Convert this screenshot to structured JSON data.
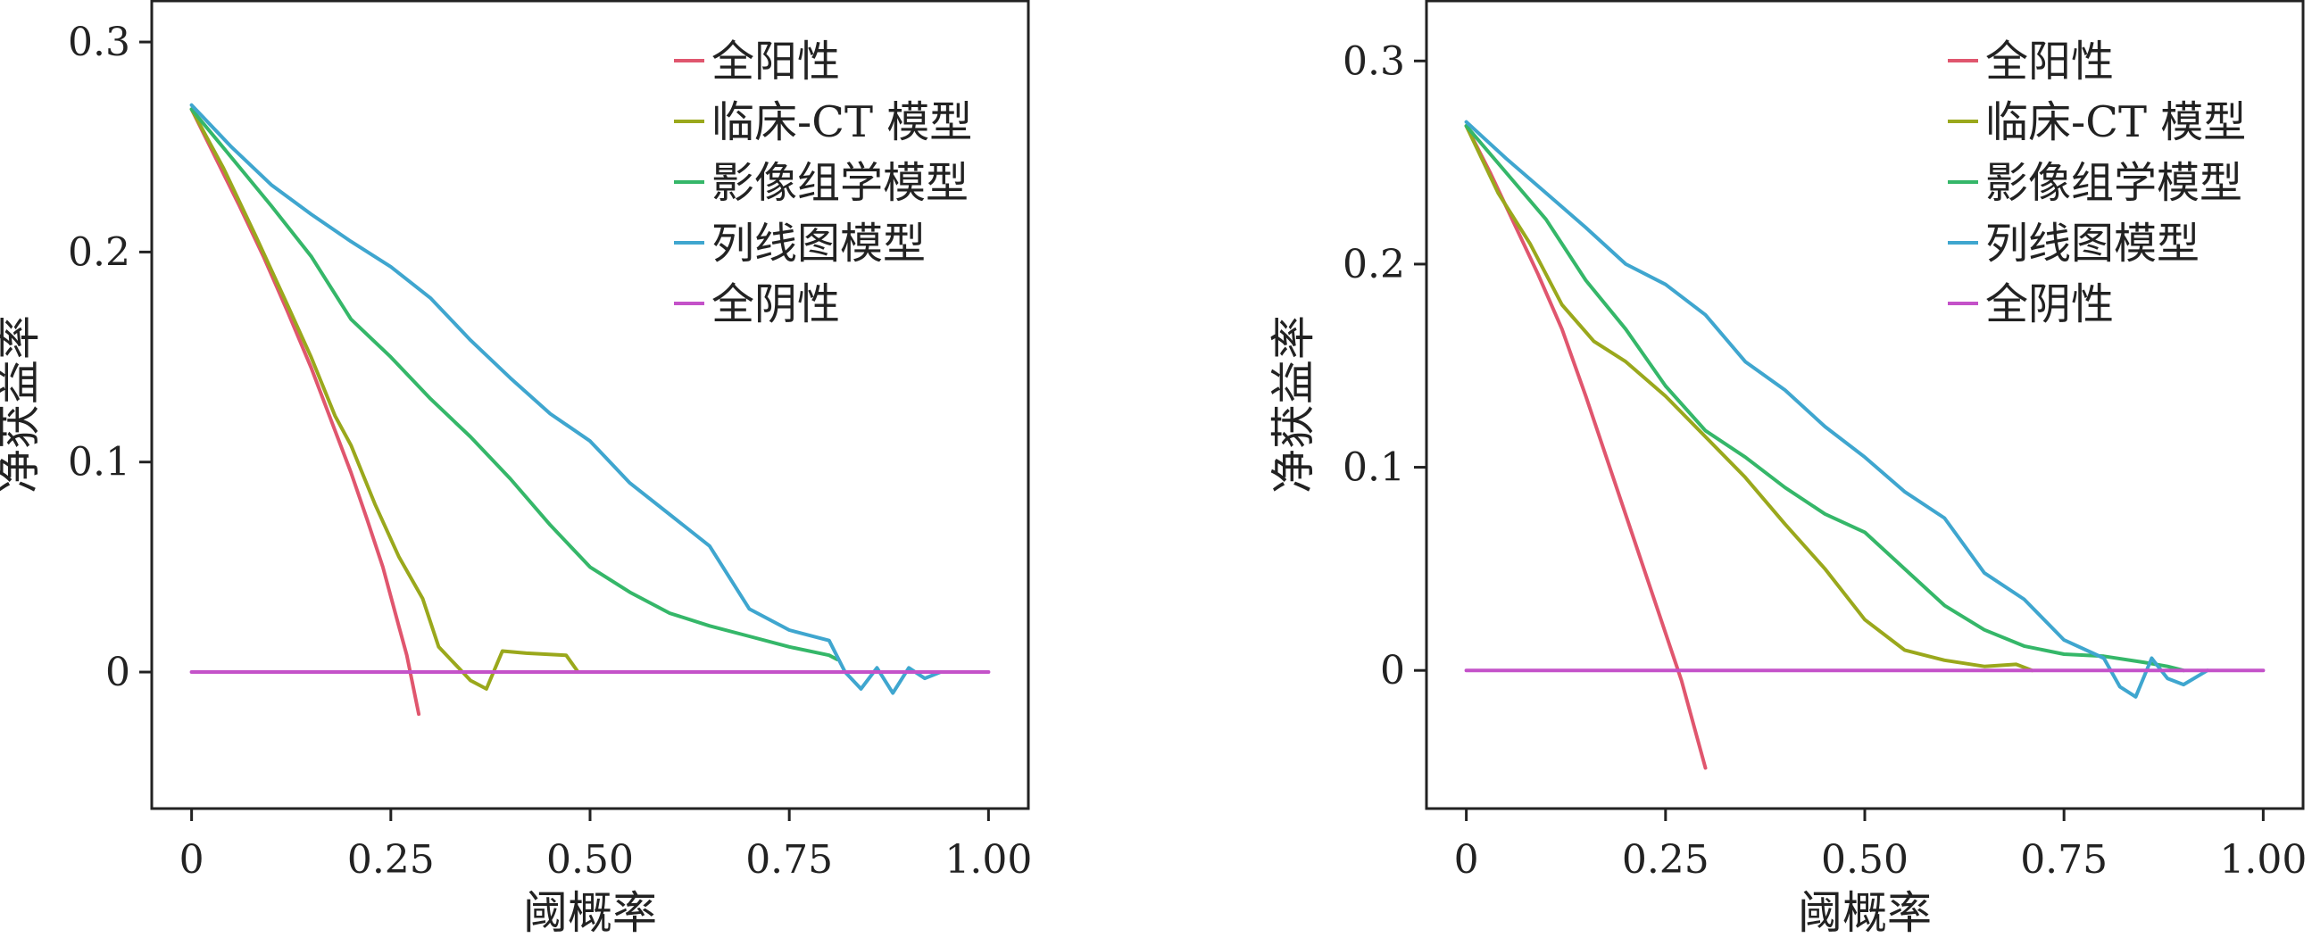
{
  "chart_data": [
    {
      "type": "line",
      "xlabel": "阈概率",
      "ylabel": "净获益率",
      "xlim": [
        -0.05,
        1.05
      ],
      "ylim": [
        -0.065,
        0.32
      ],
      "x_ticks": [
        0,
        0.25,
        0.5,
        0.75,
        1.0
      ],
      "x_tick_labels": [
        "0",
        "0.25",
        "0.50",
        "0.75",
        "1.00"
      ],
      "y_ticks": [
        0,
        0.1,
        0.2,
        0.3
      ],
      "y_tick_labels": [
        "0",
        "0.1",
        "0.2",
        "0.3"
      ],
      "grid": false,
      "legend_position": "top-right",
      "series": [
        {
          "name": "全阳性",
          "color": "#e0566e",
          "points": [
            [
              0,
              0.268
            ],
            [
              0.03,
              0.245
            ],
            [
              0.06,
              0.222
            ],
            [
              0.09,
              0.198
            ],
            [
              0.12,
              0.172
            ],
            [
              0.15,
              0.145
            ],
            [
              0.18,
              0.115
            ],
            [
              0.2,
              0.095
            ],
            [
              0.22,
              0.073
            ],
            [
              0.24,
              0.05
            ],
            [
              0.26,
              0.022
            ],
            [
              0.27,
              0.008
            ],
            [
              0.285,
              -0.02
            ]
          ]
        },
        {
          "name": "临床-CT 模型",
          "color": "#9aa81c",
          "points": [
            [
              0,
              0.268
            ],
            [
              0.04,
              0.24
            ],
            [
              0.08,
              0.208
            ],
            [
              0.12,
              0.175
            ],
            [
              0.15,
              0.15
            ],
            [
              0.18,
              0.122
            ],
            [
              0.2,
              0.108
            ],
            [
              0.23,
              0.08
            ],
            [
              0.26,
              0.055
            ],
            [
              0.29,
              0.035
            ],
            [
              0.31,
              0.012
            ],
            [
              0.335,
              0.002
            ],
            [
              0.35,
              -0.004
            ],
            [
              0.37,
              -0.008
            ],
            [
              0.39,
              0.01
            ],
            [
              0.42,
              0.009
            ],
            [
              0.47,
              0.008
            ],
            [
              0.485,
              0.0
            ]
          ]
        },
        {
          "name": "影像组学模型",
          "color": "#35b769",
          "points": [
            [
              0,
              0.268
            ],
            [
              0.05,
              0.245
            ],
            [
              0.1,
              0.222
            ],
            [
              0.15,
              0.198
            ],
            [
              0.2,
              0.168
            ],
            [
              0.25,
              0.15
            ],
            [
              0.3,
              0.13
            ],
            [
              0.35,
              0.112
            ],
            [
              0.4,
              0.092
            ],
            [
              0.45,
              0.07
            ],
            [
              0.5,
              0.05
            ],
            [
              0.55,
              0.038
            ],
            [
              0.6,
              0.028
            ],
            [
              0.65,
              0.022
            ],
            [
              0.7,
              0.017
            ],
            [
              0.75,
              0.012
            ],
            [
              0.8,
              0.008
            ],
            [
              0.81,
              0.006
            ]
          ]
        },
        {
          "name": "列线图模型",
          "color": "#3fa6cf",
          "points": [
            [
              0,
              0.27
            ],
            [
              0.05,
              0.25
            ],
            [
              0.1,
              0.232
            ],
            [
              0.15,
              0.218
            ],
            [
              0.2,
              0.205
            ],
            [
              0.25,
              0.193
            ],
            [
              0.3,
              0.178
            ],
            [
              0.35,
              0.158
            ],
            [
              0.4,
              0.14
            ],
            [
              0.45,
              0.123
            ],
            [
              0.5,
              0.11
            ],
            [
              0.55,
              0.09
            ],
            [
              0.6,
              0.075
            ],
            [
              0.65,
              0.06
            ],
            [
              0.7,
              0.03
            ],
            [
              0.75,
              0.02
            ],
            [
              0.8,
              0.015
            ],
            [
              0.82,
              0.0
            ],
            [
              0.84,
              -0.008
            ],
            [
              0.86,
              0.002
            ],
            [
              0.88,
              -0.01
            ],
            [
              0.9,
              0.002
            ],
            [
              0.92,
              -0.003
            ],
            [
              0.94,
              0.0
            ]
          ]
        },
        {
          "name": "全阴性",
          "color": "#c452c9",
          "points": [
            [
              0,
              0
            ],
            [
              1,
              0
            ]
          ]
        }
      ]
    },
    {
      "type": "line",
      "xlabel": "阈概率",
      "ylabel": "净获益率",
      "xlim": [
        -0.05,
        1.05
      ],
      "ylim": [
        -0.068,
        0.33
      ],
      "x_ticks": [
        0,
        0.25,
        0.5,
        0.75,
        1.0
      ],
      "x_tick_labels": [
        "0",
        "0.25",
        "0.50",
        "0.75",
        "1.00"
      ],
      "y_ticks": [
        0,
        0.1,
        0.2,
        0.3
      ],
      "y_tick_labels": [
        "0",
        "0.1",
        "0.2",
        "0.3"
      ],
      "grid": false,
      "legend_position": "top-right",
      "series": [
        {
          "name": "全阳性",
          "color": "#e0566e",
          "points": [
            [
              0,
              0.268
            ],
            [
              0.03,
              0.245
            ],
            [
              0.06,
              0.22
            ],
            [
              0.09,
              0.195
            ],
            [
              0.12,
              0.168
            ],
            [
              0.15,
              0.135
            ],
            [
              0.18,
              0.1
            ],
            [
              0.21,
              0.065
            ],
            [
              0.24,
              0.03
            ],
            [
              0.27,
              -0.005
            ],
            [
              0.3,
              -0.048
            ]
          ]
        },
        {
          "name": "临床-CT 模型",
          "color": "#9aa81c",
          "points": [
            [
              0,
              0.268
            ],
            [
              0.04,
              0.235
            ],
            [
              0.08,
              0.21
            ],
            [
              0.12,
              0.18
            ],
            [
              0.16,
              0.162
            ],
            [
              0.2,
              0.152
            ],
            [
              0.25,
              0.135
            ],
            [
              0.3,
              0.115
            ],
            [
              0.35,
              0.095
            ],
            [
              0.4,
              0.072
            ],
            [
              0.45,
              0.05
            ],
            [
              0.5,
              0.025
            ],
            [
              0.55,
              0.01
            ],
            [
              0.6,
              0.005
            ],
            [
              0.65,
              0.002
            ],
            [
              0.69,
              0.003
            ],
            [
              0.71,
              0.0
            ]
          ]
        },
        {
          "name": "影像组学模型",
          "color": "#35b769",
          "points": [
            [
              0,
              0.268
            ],
            [
              0.05,
              0.245
            ],
            [
              0.1,
              0.222
            ],
            [
              0.15,
              0.192
            ],
            [
              0.2,
              0.168
            ],
            [
              0.25,
              0.14
            ],
            [
              0.3,
              0.118
            ],
            [
              0.35,
              0.105
            ],
            [
              0.4,
              0.09
            ],
            [
              0.45,
              0.077
            ],
            [
              0.5,
              0.068
            ],
            [
              0.55,
              0.05
            ],
            [
              0.6,
              0.032
            ],
            [
              0.65,
              0.02
            ],
            [
              0.7,
              0.012
            ],
            [
              0.75,
              0.008
            ],
            [
              0.8,
              0.007
            ],
            [
              0.85,
              0.004
            ],
            [
              0.88,
              0.002
            ],
            [
              0.9,
              0.0
            ]
          ]
        },
        {
          "name": "列线图模型",
          "color": "#3fa6cf",
          "points": [
            [
              0,
              0.27
            ],
            [
              0.05,
              0.252
            ],
            [
              0.1,
              0.235
            ],
            [
              0.15,
              0.218
            ],
            [
              0.2,
              0.2
            ],
            [
              0.25,
              0.19
            ],
            [
              0.3,
              0.175
            ],
            [
              0.35,
              0.152
            ],
            [
              0.4,
              0.138
            ],
            [
              0.45,
              0.12
            ],
            [
              0.5,
              0.105
            ],
            [
              0.55,
              0.088
            ],
            [
              0.6,
              0.075
            ],
            [
              0.65,
              0.048
            ],
            [
              0.7,
              0.035
            ],
            [
              0.75,
              0.015
            ],
            [
              0.8,
              0.006
            ],
            [
              0.82,
              -0.008
            ],
            [
              0.84,
              -0.013
            ],
            [
              0.86,
              0.006
            ],
            [
              0.88,
              -0.004
            ],
            [
              0.9,
              -0.007
            ],
            [
              0.93,
              0.0
            ]
          ]
        },
        {
          "name": "全阴性",
          "color": "#c452c9",
          "points": [
            [
              0,
              0
            ],
            [
              1,
              0
            ]
          ]
        }
      ]
    }
  ]
}
